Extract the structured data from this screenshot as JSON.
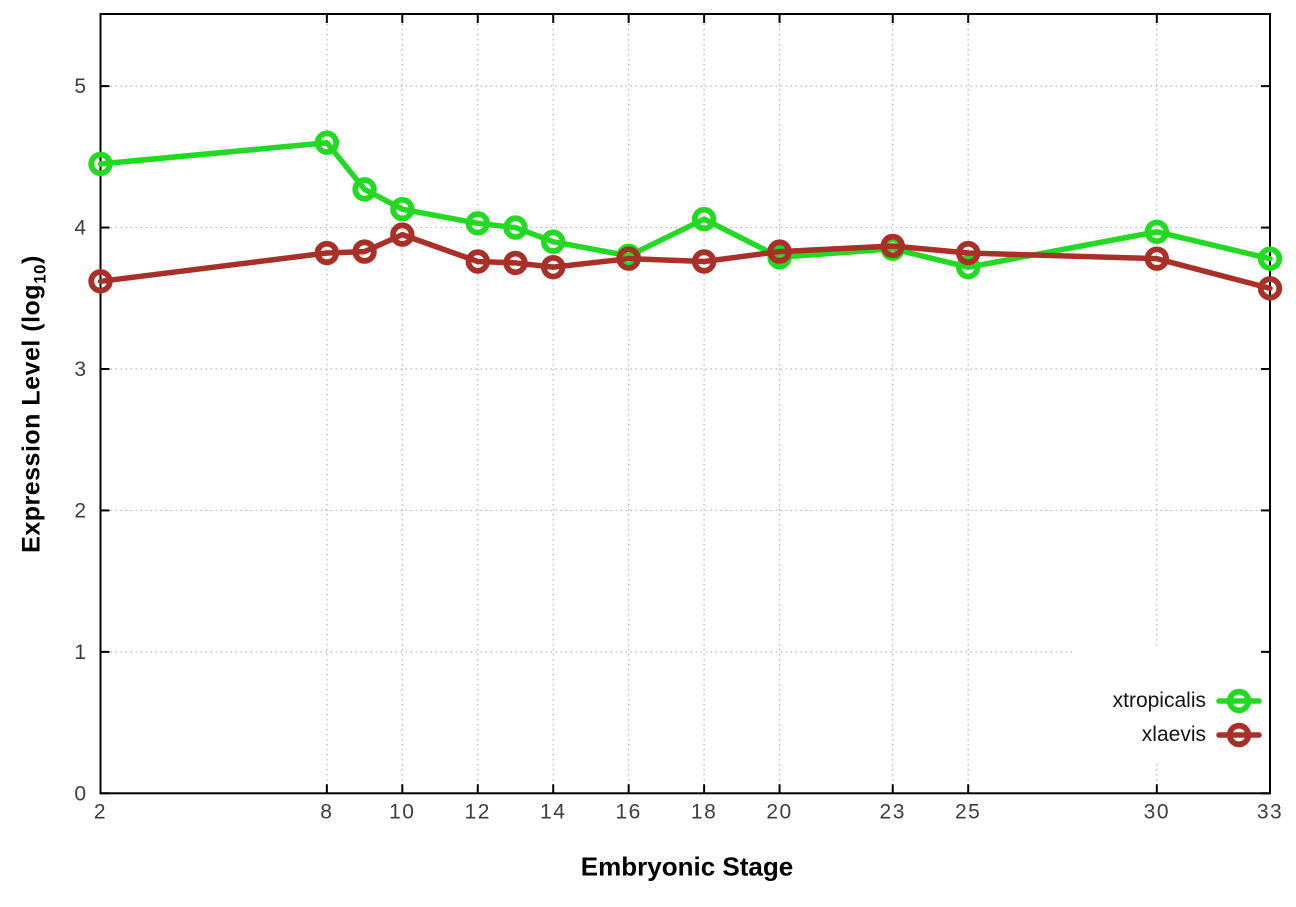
{
  "figure": {
    "xlabel": "Embryonic Stage",
    "ylabel": "Expression Level (log10)",
    "ylabel_main": "Expression Level (log",
    "ylabel_sub": "10",
    "ylabel_close": ")",
    "background_color": "#ffffff",
    "axis_color": "#000000",
    "grid_color": "#b5b5b5",
    "tick_label_color": "#3d3d3d"
  },
  "chart_data": {
    "type": "line",
    "xlabel": "Embryonic Stage",
    "ylabel": "Expression Level (log10)",
    "x": [
      2,
      8,
      9,
      10,
      12,
      13,
      14,
      16,
      18,
      20,
      23,
      25,
      30,
      33
    ],
    "series": [
      {
        "name": "xtropicalis",
        "color": "#23d923",
        "marker": "open-circle",
        "values": [
          4.45,
          4.6,
          4.27,
          4.13,
          4.03,
          4.0,
          3.9,
          3.8,
          4.06,
          3.79,
          3.85,
          3.72,
          3.97,
          3.78
        ]
      },
      {
        "name": "xlaevis",
        "color": "#a93028",
        "marker": "open-circle",
        "values": [
          3.62,
          3.82,
          3.83,
          3.95,
          3.76,
          3.75,
          3.72,
          3.78,
          3.76,
          3.83,
          3.87,
          3.82,
          3.78,
          3.57
        ]
      }
    ],
    "x_ticks": [
      2,
      8,
      10,
      12,
      14,
      16,
      18,
      20,
      23,
      25,
      30,
      33
    ],
    "y_ticks": [
      0,
      1,
      2,
      3,
      4,
      5
    ],
    "xlim": [
      2,
      33
    ],
    "ylim": [
      0,
      5.51
    ],
    "grid": true,
    "legend_position": "bottom-right"
  }
}
